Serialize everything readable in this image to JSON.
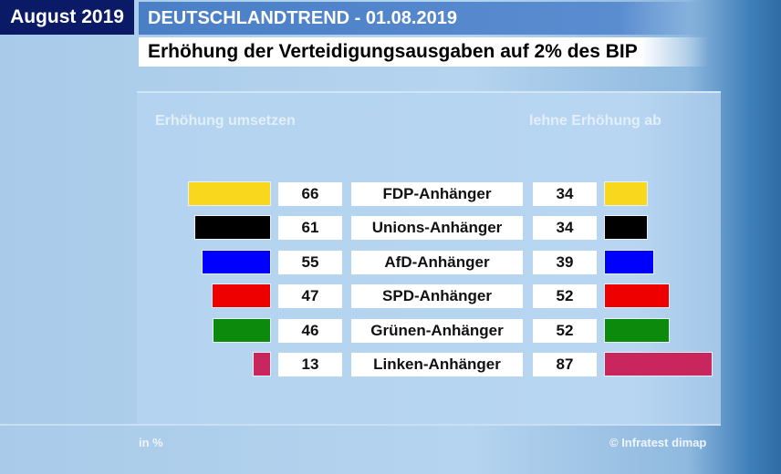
{
  "header": {
    "month": "August 2019",
    "series": "DEUTSCHLANDTREND - 01.08.2019",
    "title": "Erhöhung der Verteidigungsausgaben auf 2% des BIP"
  },
  "footer": {
    "unit": "in %",
    "source": "© Infratest dimap"
  },
  "chart_data": {
    "type": "bar",
    "title": "Erhöhung der Verteidigungsausgaben auf 2% des BIP",
    "categories": [
      "FDP-Anhänger",
      "Unions-Anhänger",
      "AfD-Anhänger",
      "SPD-Anhänger",
      "Grünen-Anhänger",
      "Linken-Anhänger"
    ],
    "colors": [
      "#f9d71c",
      "#000000",
      "#0000ff",
      "#ee0000",
      "#0b8a0b",
      "#c8265c"
    ],
    "series": [
      {
        "name": "Erhöhung umsetzen",
        "values": [
          66,
          61,
          55,
          47,
          46,
          13
        ]
      },
      {
        "name": "lehne Erhöhung ab",
        "values": [
          34,
          34,
          39,
          52,
          52,
          87
        ]
      }
    ],
    "unit": "in %"
  }
}
